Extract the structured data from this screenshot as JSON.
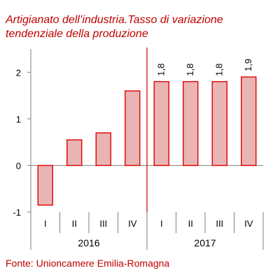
{
  "chart_data": {
    "type": "bar",
    "title_lines": [
      "Artigianato dell’industria.Tasso di variazione",
      "tendenziale della produzione"
    ],
    "source": "Fonte: Unioncamere Emilia-Romagna",
    "categories": [
      "I",
      "II",
      "III",
      "IV",
      "I",
      "II",
      "III",
      "IV"
    ],
    "groups": [
      {
        "label": "2016",
        "count": 4
      },
      {
        "label": "2017",
        "count": 4
      }
    ],
    "values": [
      -0.85,
      0.55,
      0.7,
      1.6,
      1.8,
      1.8,
      1.8,
      1.9
    ],
    "data_labels": [
      "",
      "",
      "",
      "",
      "1,8",
      "1,8",
      "1,8",
      "1,9"
    ],
    "yticks": [
      {
        "value": 2,
        "label": "2"
      },
      {
        "value": 1,
        "label": "1"
      },
      {
        "value": 0,
        "label": "0"
      },
      {
        "value": -1,
        "label": "-1"
      }
    ],
    "ylim": [
      -1,
      2.5
    ],
    "grid": false,
    "colors": {
      "bar_fill": "#e8b4b4",
      "bar_stroke": "#e00000",
      "title": "#c00000",
      "divider": "#c00000",
      "axis": "#7f7f7f"
    }
  }
}
